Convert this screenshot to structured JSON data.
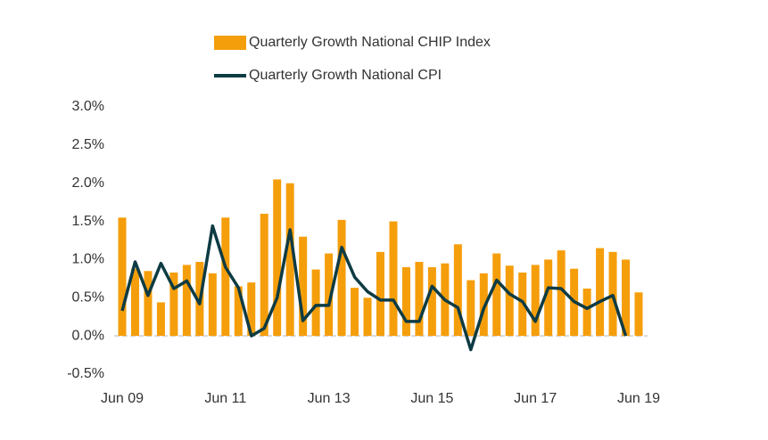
{
  "chart_data": {
    "type": "bar-line",
    "categories": [
      "Jun 09",
      null,
      null,
      null,
      null,
      null,
      null,
      null,
      "Jun 11",
      null,
      null,
      null,
      null,
      null,
      null,
      null,
      "Jun 13",
      null,
      null,
      null,
      null,
      null,
      null,
      null,
      "Jun 15",
      null,
      null,
      null,
      null,
      null,
      null,
      null,
      "Jun 17",
      null,
      null,
      null,
      null,
      null,
      null,
      null,
      "Jun 19"
    ],
    "series": [
      {
        "name": "Quarterly Growth National CHIP Index",
        "type": "bar",
        "color": "#f59e0b",
        "values": [
          1.55,
          0.88,
          0.85,
          0.44,
          0.83,
          0.93,
          0.97,
          0.82,
          1.55,
          0.65,
          0.7,
          1.6,
          2.05,
          2.0,
          1.3,
          0.87,
          1.08,
          1.52,
          0.63,
          0.5,
          1.1,
          1.5,
          0.9,
          0.97,
          0.9,
          0.95,
          1.2,
          0.73,
          0.82,
          1.08,
          0.92,
          0.83,
          0.93,
          1.0,
          1.12,
          0.88,
          0.62,
          1.15,
          1.1,
          1.0,
          0.57
        ]
      },
      {
        "name": "Quarterly Growth National CPI",
        "type": "line",
        "color": "#0e3b43",
        "values": [
          0.33,
          0.97,
          0.53,
          0.95,
          0.62,
          0.72,
          0.42,
          1.44,
          0.9,
          0.63,
          0.0,
          0.1,
          0.5,
          1.39,
          0.2,
          0.4,
          0.4,
          1.16,
          0.77,
          0.58,
          0.47,
          0.47,
          0.19,
          0.19,
          0.65,
          0.47,
          0.37,
          -0.18,
          0.36,
          0.73,
          0.55,
          0.45,
          0.19,
          0.63,
          0.62,
          0.45,
          0.36,
          0.45,
          0.53,
          0.0,
          null
        ]
      }
    ],
    "ylim": [
      -0.5,
      3.0
    ],
    "yticks": [
      {
        "value": 3.0,
        "label": "3.0%"
      },
      {
        "value": 2.5,
        "label": "2.5%"
      },
      {
        "value": 2.0,
        "label": "2.0%"
      },
      {
        "value": 1.5,
        "label": "1.5%"
      },
      {
        "value": 1.0,
        "label": "1.0%"
      },
      {
        "value": 0.5,
        "label": "0.5%"
      },
      {
        "value": 0.0,
        "label": "0.0%"
      },
      {
        "value": -0.5,
        "label": "-0.5%"
      }
    ],
    "grid": false
  }
}
